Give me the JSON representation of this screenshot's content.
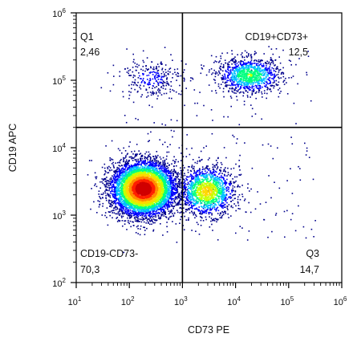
{
  "chart_data": {
    "type": "scatter",
    "title": "",
    "xlabel": "CD73 PE",
    "ylabel": "CD19 APC",
    "x_scale": "log",
    "y_scale": "log",
    "xlim": [
      10,
      1000000
    ],
    "ylim": [
      100,
      1000000
    ],
    "x_ticks": [
      {
        "value": 10,
        "label_base": "10",
        "label_exp": "1"
      },
      {
        "value": 100,
        "label_base": "10",
        "label_exp": "2"
      },
      {
        "value": 1000,
        "label_base": "10",
        "label_exp": "3"
      },
      {
        "value": 10000,
        "label_base": "10",
        "label_exp": "4"
      },
      {
        "value": 100000,
        "label_base": "10",
        "label_exp": "5"
      },
      {
        "value": 1000000,
        "label_base": "10",
        "label_exp": "6"
      }
    ],
    "y_ticks": [
      {
        "value": 100,
        "label_base": "10",
        "label_exp": "2"
      },
      {
        "value": 1000,
        "label_base": "10",
        "label_exp": "3"
      },
      {
        "value": 10000,
        "label_base": "10",
        "label_exp": "4"
      },
      {
        "value": 100000,
        "label_base": "10",
        "label_exp": "5"
      },
      {
        "value": 1000000,
        "label_base": "10",
        "label_exp": "6"
      }
    ],
    "gates": {
      "x": 1000,
      "y": 20000
    },
    "quadrants": [
      {
        "id": "q1",
        "name": "Q1",
        "value": "2,46",
        "position": "top-left"
      },
      {
        "id": "q2",
        "name": "CD19+CD73+",
        "value": "12,5",
        "position": "top-right"
      },
      {
        "id": "q4",
        "name": "CD19-CD73-",
        "value": "70,3",
        "position": "bottom-left"
      },
      {
        "id": "q3",
        "name": "Q3",
        "value": "14,7",
        "position": "bottom-right"
      }
    ],
    "populations": [
      {
        "center_x": 180,
        "center_y": 2500,
        "spread_log_x": 0.3,
        "spread_log_y": 0.2,
        "weight": 0.68,
        "peak_density": 1.0
      },
      {
        "center_x": 2800,
        "center_y": 2300,
        "spread_log_x": 0.26,
        "spread_log_y": 0.18,
        "weight": 0.16,
        "peak_density": 0.6
      },
      {
        "center_x": 18000,
        "center_y": 120000,
        "spread_log_x": 0.3,
        "spread_log_y": 0.13,
        "weight": 0.12,
        "peak_density": 0.45
      },
      {
        "center_x": 250,
        "center_y": 110000,
        "spread_log_x": 0.3,
        "spread_log_y": 0.15,
        "weight": 0.03,
        "peak_density": 0.15
      }
    ],
    "colormap": [
      "#00008b",
      "#0000ff",
      "#00bfff",
      "#00ff80",
      "#c8ff00",
      "#ffd700",
      "#ff8c00",
      "#ff2000",
      "#d00000"
    ],
    "grid": false,
    "legend": "none"
  }
}
